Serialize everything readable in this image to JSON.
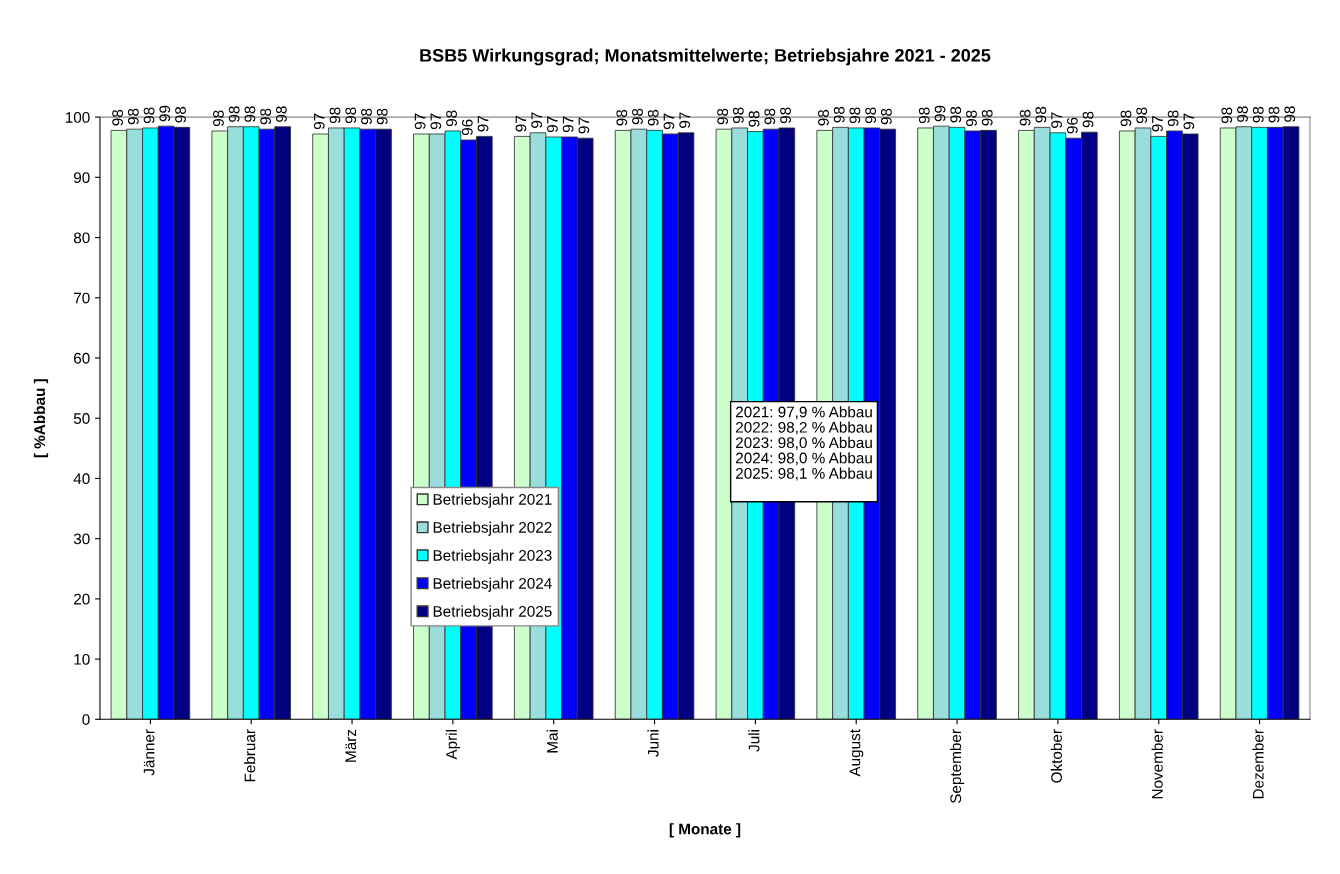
{
  "chart_data": {
    "type": "bar",
    "title": "BSB5 Wirkungsgrad; Monatsmittelwerte; Betriebsjahre 2021 - 2025",
    "xlabel": "[ Monate ]",
    "ylabel": "[ %Abbau ]",
    "categories": [
      "Jänner",
      "Februar",
      "März",
      "April",
      "Mai",
      "Juni",
      "Juli",
      "August",
      "September",
      "Oktober",
      "November",
      "Dezember"
    ],
    "series": [
      {
        "name": "Betriebsjahr 2021",
        "color": "#ccffcc",
        "values": [
          97.8,
          97.7,
          97.2,
          97.2,
          96.8,
          97.8,
          98.0,
          97.8,
          98.2,
          97.8,
          97.7,
          98.2
        ],
        "value_labels": [
          "98",
          "98",
          "97",
          "97",
          "97",
          "98",
          "98",
          "98",
          "98",
          "98",
          "98",
          "98"
        ]
      },
      {
        "name": "Betriebsjahr 2022",
        "color": "#99dddd",
        "values": [
          98.0,
          98.4,
          98.2,
          97.2,
          97.4,
          98.0,
          98.2,
          98.3,
          98.5,
          98.3,
          98.2,
          98.4
        ],
        "value_labels": [
          "98",
          "98",
          "98",
          "97",
          "97",
          "98",
          "98",
          "98",
          "99",
          "98",
          "98",
          "98"
        ]
      },
      {
        "name": "Betriebsjahr 2023",
        "color": "#00ffff",
        "values": [
          98.2,
          98.4,
          98.2,
          97.7,
          96.7,
          97.8,
          97.6,
          98.2,
          98.3,
          97.4,
          96.8,
          98.3
        ],
        "value_labels": [
          "98",
          "98",
          "98",
          "98",
          "97",
          "98",
          "98",
          "98",
          "98",
          "97",
          "97",
          "98"
        ]
      },
      {
        "name": "Betriebsjahr 2024",
        "color": "#0000ff",
        "values": [
          98.5,
          98.0,
          98.0,
          96.2,
          96.7,
          97.2,
          98.0,
          98.2,
          97.7,
          96.5,
          97.7,
          98.3
        ],
        "value_labels": [
          "99",
          "98",
          "98",
          "96",
          "97",
          "97",
          "98",
          "98",
          "98",
          "96",
          "98",
          "98"
        ]
      },
      {
        "name": "Betriebsjahr 2025",
        "color": "#000080",
        "values": [
          98.3,
          98.4,
          98.0,
          96.8,
          96.5,
          97.4,
          98.2,
          98.0,
          97.8,
          97.5,
          97.2,
          98.4
        ],
        "value_labels": [
          "98",
          "98",
          "98",
          "97",
          "97",
          "97",
          "98",
          "98",
          "98",
          "98",
          "97",
          "98"
        ]
      }
    ],
    "ylim": [
      0,
      100
    ],
    "yticks": [
      0,
      10,
      20,
      30,
      40,
      50,
      60,
      70,
      80,
      90,
      100
    ],
    "grid": false,
    "legend": "center",
    "annotations": [
      "2021: 97,9 % Abbau",
      "2022: 98,2 % Abbau",
      "2023: 98,0 % Abbau",
      "2024: 98,0 % Abbau",
      "2025: 98,1 % Abbau"
    ]
  }
}
